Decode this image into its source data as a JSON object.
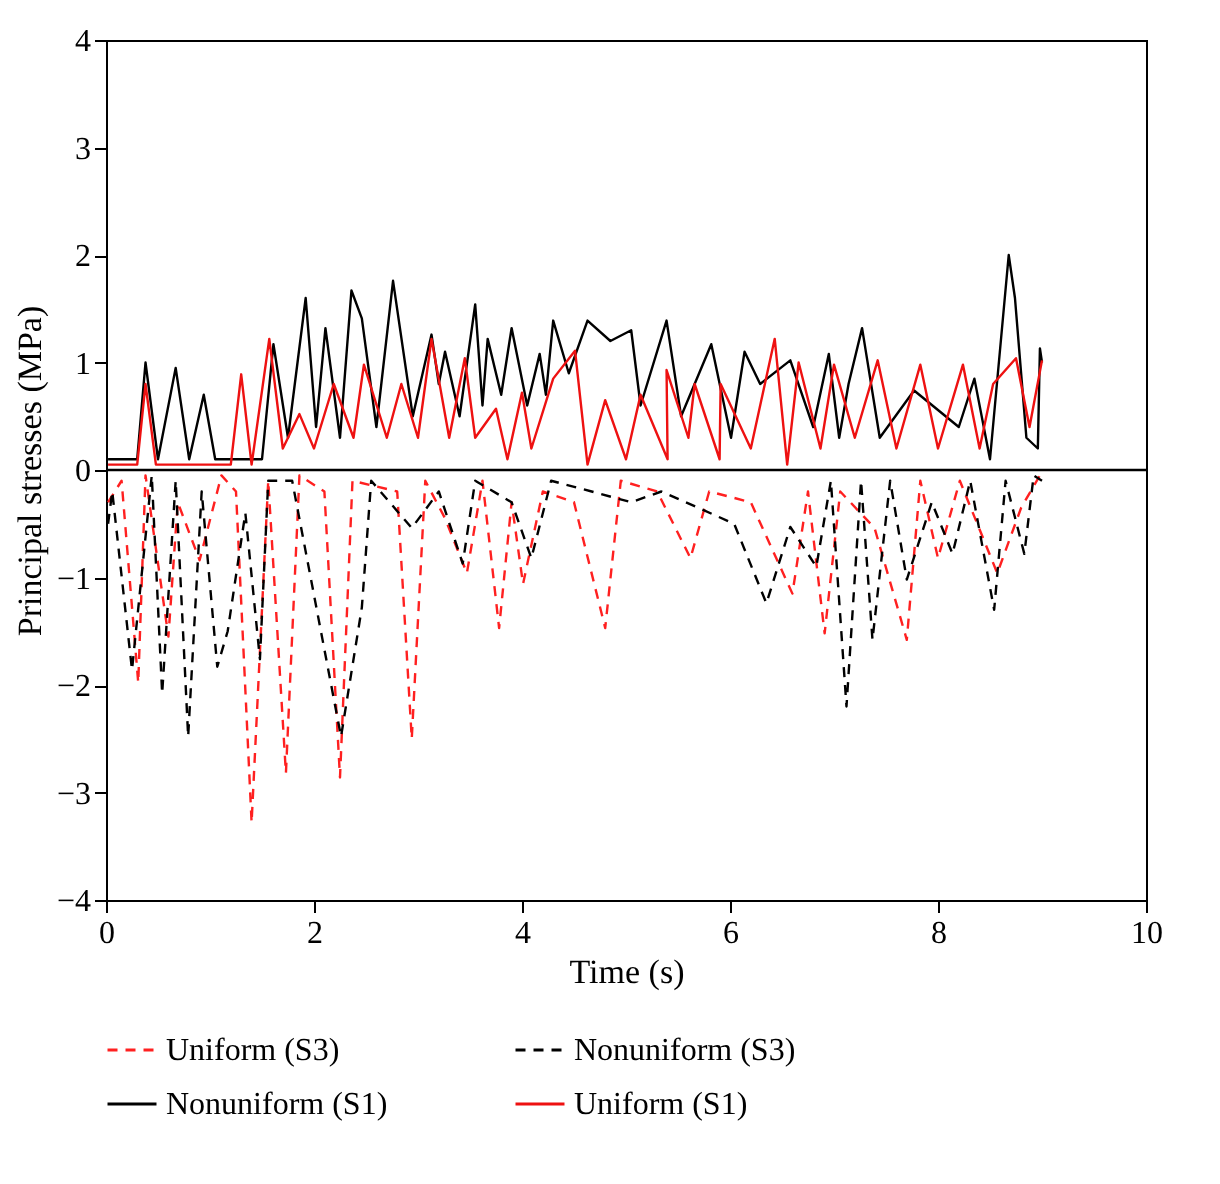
{
  "chart_data": {
    "type": "line",
    "xlabel": "Time (s)",
    "ylabel": "Principal stresses (MPa)",
    "xlim": [
      0,
      10
    ],
    "xticks": [
      0,
      2,
      4,
      6,
      8,
      10
    ],
    "ylim": [
      -4,
      4
    ],
    "yticks": [
      -4,
      -3,
      -2,
      -1,
      0,
      1,
      2,
      3,
      4
    ],
    "grid": false,
    "legend": "bottom",
    "marker": "none",
    "ref_lines": [
      {
        "axis": "y",
        "value": 0,
        "color": "#000000",
        "line_style": "solid"
      }
    ],
    "series": [
      {
        "name": "Uniform (S3)",
        "color": "#ff2020",
        "line_style": "dashed",
        "x": [
          0.02,
          0.15,
          0.31,
          0.38,
          0.6,
          0.69,
          0.9,
          1.11,
          1.25,
          1.4,
          1.56,
          1.73,
          1.86,
          2.1,
          2.25,
          2.37,
          2.8,
          2.94,
          3.07,
          3.26,
          3.47,
          3.62,
          3.78,
          3.9,
          4.01,
          4.2,
          4.5,
          4.8,
          4.95,
          5.3,
          5.62,
          5.8,
          6.2,
          6.6,
          6.75,
          6.91,
          7.06,
          7.39,
          7.7,
          7.83,
          8.0,
          8.21,
          8.57,
          8.8,
          8.98
        ],
        "values": [
          -0.3,
          -0.1,
          -1.98,
          -0.05,
          -1.55,
          -0.3,
          -0.84,
          -0.05,
          -0.2,
          -3.28,
          -0.1,
          -2.82,
          -0.05,
          -0.2,
          -2.86,
          -0.1,
          -0.2,
          -2.5,
          -0.1,
          -0.45,
          -0.96,
          -0.1,
          -1.47,
          -0.3,
          -1.06,
          -0.2,
          -0.3,
          -1.47,
          -0.1,
          -0.2,
          -0.82,
          -0.2,
          -0.3,
          -1.15,
          -0.2,
          -1.52,
          -0.2,
          -0.54,
          -1.58,
          -0.1,
          -0.82,
          -0.1,
          -0.96,
          -0.35,
          -0.05
        ]
      },
      {
        "name": "Nonuniform (S3)",
        "color": "#000000",
        "line_style": "dashed",
        "x": [
          0.02,
          0.06,
          0.25,
          0.44,
          0.54,
          0.67,
          0.79,
          0.92,
          1.07,
          1.17,
          1.34,
          1.48,
          1.56,
          1.79,
          2.26,
          2.46,
          2.55,
          2.94,
          3.2,
          3.43,
          3.55,
          3.9,
          4.09,
          4.28,
          4.67,
          5.05,
          5.34,
          6.04,
          6.35,
          6.58,
          6.83,
          6.97,
          7.12,
          7.26,
          7.37,
          7.54,
          7.7,
          7.94,
          8.14,
          8.31,
          8.54,
          8.65,
          8.83,
          8.92,
          9.0
        ],
        "values": [
          -0.5,
          -0.2,
          -1.86,
          -0.05,
          -2.08,
          -0.1,
          -2.48,
          -0.2,
          -1.83,
          -1.5,
          -0.4,
          -1.76,
          -0.1,
          -0.1,
          -2.48,
          -1.28,
          -0.1,
          -0.54,
          -0.2,
          -0.87,
          -0.1,
          -0.3,
          -0.82,
          -0.1,
          -0.2,
          -0.3,
          -0.2,
          -0.5,
          -1.24,
          -0.53,
          -0.9,
          -0.1,
          -2.2,
          -0.1,
          -1.58,
          -0.1,
          -1.02,
          -0.3,
          -0.78,
          -0.1,
          -1.3,
          -0.1,
          -0.78,
          -0.05,
          -0.1
        ]
      },
      {
        "name": "Nonuniform (S1)",
        "color": "#000000",
        "line_style": "solid",
        "x": [
          0.02,
          0.3,
          0.38,
          0.5,
          0.67,
          0.8,
          0.94,
          1.05,
          1.5,
          1.61,
          1.75,
          1.92,
          2.02,
          2.11,
          2.25,
          2.36,
          2.46,
          2.6,
          2.76,
          2.95,
          3.13,
          3.2,
          3.26,
          3.4,
          3.55,
          3.62,
          3.67,
          3.8,
          3.9,
          4.05,
          4.17,
          4.23,
          4.3,
          4.45,
          4.63,
          4.85,
          5.05,
          5.14,
          5.39,
          5.53,
          5.82,
          6.01,
          6.14,
          6.29,
          6.58,
          6.8,
          6.95,
          7.05,
          7.14,
          7.27,
          7.44,
          7.77,
          8.2,
          8.35,
          8.5,
          8.68,
          8.74,
          8.85,
          8.96,
          8.98,
          9.0
        ],
        "values": [
          0.1,
          0.1,
          1.0,
          0.1,
          0.95,
          0.1,
          0.7,
          0.1,
          0.1,
          1.17,
          0.3,
          1.6,
          0.4,
          1.32,
          0.3,
          1.67,
          1.41,
          0.4,
          1.76,
          0.5,
          1.26,
          0.8,
          1.1,
          0.5,
          1.54,
          0.6,
          1.22,
          0.7,
          1.32,
          0.6,
          1.08,
          0.7,
          1.39,
          0.9,
          1.39,
          1.2,
          1.3,
          0.6,
          1.39,
          0.5,
          1.17,
          0.3,
          1.1,
          0.8,
          1.02,
          0.4,
          1.08,
          0.3,
          0.8,
          1.32,
          0.3,
          0.74,
          0.4,
          0.85,
          0.1,
          2.0,
          1.6,
          0.3,
          0.2,
          1.13,
          1.0
        ]
      },
      {
        "name": "Uniform (S1)",
        "color": "#ee1111",
        "line_style": "solid",
        "x": [
          0.02,
          0.3,
          0.38,
          0.48,
          1.2,
          1.3,
          1.4,
          1.57,
          1.7,
          1.86,
          2.0,
          2.19,
          2.38,
          2.48,
          2.7,
          2.84,
          3.0,
          3.13,
          3.3,
          3.45,
          3.55,
          3.75,
          3.86,
          4.0,
          4.09,
          4.3,
          4.51,
          4.63,
          4.8,
          5.0,
          5.14,
          5.4,
          5.39,
          5.6,
          5.66,
          5.9,
          5.91,
          6.2,
          6.43,
          6.55,
          6.66,
          6.87,
          7.0,
          7.2,
          7.42,
          7.6,
          7.83,
          8.0,
          8.24,
          8.4,
          8.53,
          8.75,
          8.88,
          9.0
        ],
        "values": [
          0.05,
          0.05,
          0.8,
          0.05,
          0.05,
          0.89,
          0.05,
          1.22,
          0.2,
          0.52,
          0.2,
          0.8,
          0.3,
          0.98,
          0.3,
          0.8,
          0.3,
          1.22,
          0.3,
          1.04,
          0.3,
          0.57,
          0.1,
          0.72,
          0.2,
          0.85,
          1.11,
          0.05,
          0.65,
          0.1,
          0.7,
          0.1,
          0.93,
          0.3,
          0.8,
          0.1,
          0.8,
          0.2,
          1.22,
          0.05,
          1.0,
          0.2,
          0.98,
          0.3,
          1.02,
          0.2,
          0.98,
          0.2,
          0.98,
          0.2,
          0.8,
          1.04,
          0.4,
          1.02
        ]
      }
    ]
  }
}
